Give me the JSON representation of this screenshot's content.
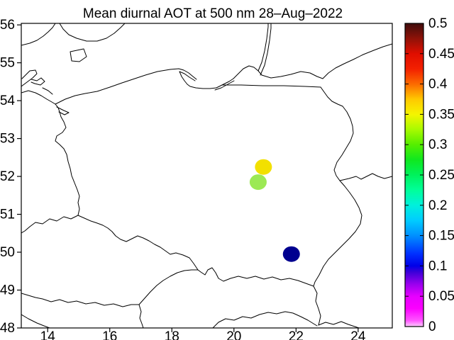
{
  "title": "Mean diurnal AOT at 500 nm 28–Aug–2022",
  "chart_data": {
    "type": "scatter",
    "title": "Mean diurnal AOT at 500 nm 28–Aug–2022",
    "xlabel": "",
    "ylabel": "",
    "xlim": [
      13.15,
      25.1
    ],
    "ylim": [
      48,
      56.04
    ],
    "x_ticks": [
      14,
      16,
      18,
      20,
      22,
      24
    ],
    "y_ticks": [
      48,
      49,
      50,
      51,
      52,
      53,
      54,
      55,
      56
    ],
    "grid": false,
    "legend_position": "none",
    "background": "#ffffff",
    "map_region": "Poland and neighbouring country borders, Baltic coast",
    "points": [
      {
        "lon": 20.95,
        "lat": 52.25,
        "aot": 0.34,
        "color": "#f2e000"
      },
      {
        "lon": 20.78,
        "lat": 51.85,
        "aot": 0.31,
        "color": "#9ce954"
      },
      {
        "lon": 21.85,
        "lat": 49.95,
        "aot": 0.09,
        "color": "#00008f"
      }
    ],
    "colorbar": {
      "min": 0,
      "max": 0.5,
      "tick_values": [
        0.5,
        0.45,
        0.4,
        0.35,
        0.3,
        0.25,
        0.2,
        0.15,
        0.1,
        0.05,
        0
      ],
      "tick_labels": [
        "0.5",
        "0.45",
        "0.4",
        "0.35",
        "0.3",
        "0.25",
        "0.2",
        "0.15",
        "0.1",
        "0.05",
        "0"
      ],
      "gradient_stops": [
        {
          "value": 0.0,
          "color": "#ffccff"
        },
        {
          "value": 0.01,
          "color": "#ff55ff"
        },
        {
          "value": 0.03,
          "color": "#fb00ff"
        },
        {
          "value": 0.05,
          "color": "#e600ff"
        },
        {
          "value": 0.07,
          "color": "#9900ee"
        },
        {
          "value": 0.09,
          "color": "#3c00d8"
        },
        {
          "value": 0.1,
          "color": "#0000e8"
        },
        {
          "value": 0.12,
          "color": "#0030ff"
        },
        {
          "value": 0.15,
          "color": "#0090ff"
        },
        {
          "value": 0.175,
          "color": "#00ccff"
        },
        {
          "value": 0.2,
          "color": "#00f0dc"
        },
        {
          "value": 0.225,
          "color": "#00ff9a"
        },
        {
          "value": 0.25,
          "color": "#00f25c"
        },
        {
          "value": 0.275,
          "color": "#0fe81f"
        },
        {
          "value": 0.3,
          "color": "#55ee00"
        },
        {
          "value": 0.325,
          "color": "#a8fa00"
        },
        {
          "value": 0.35,
          "color": "#f5f500"
        },
        {
          "value": 0.375,
          "color": "#ffc800"
        },
        {
          "value": 0.4,
          "color": "#fc6a00"
        },
        {
          "value": 0.425,
          "color": "#f32000"
        },
        {
          "value": 0.45,
          "color": "#e00e00"
        },
        {
          "value": 0.475,
          "color": "#8f1208"
        },
        {
          "value": 0.5,
          "color": "#3f0d0d"
        }
      ]
    }
  }
}
